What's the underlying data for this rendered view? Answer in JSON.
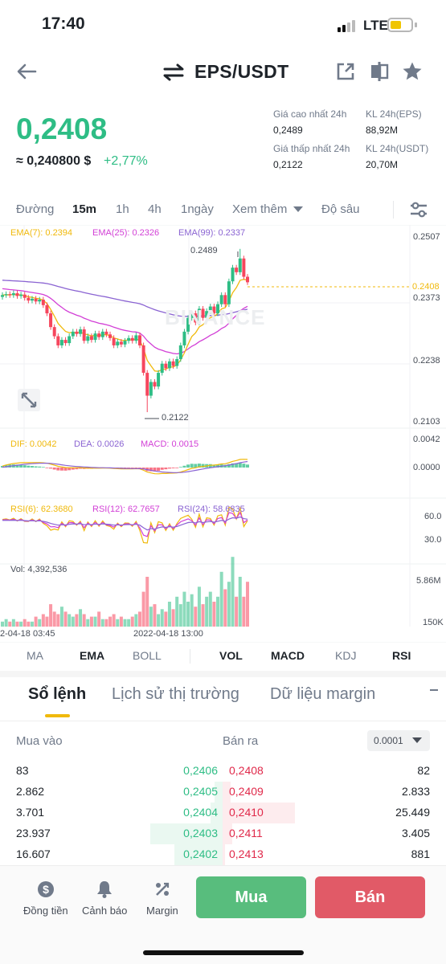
{
  "status": {
    "time": "17:40",
    "network": "LTE"
  },
  "header": {
    "pair": "EPS/USDT"
  },
  "price": {
    "last": "0,2408",
    "fiat": "≈ 0,240800 $",
    "change": "+2,77%"
  },
  "stats": {
    "high_label": "Giá cao nhất 24h",
    "high_value": "0,2489",
    "low_label": "Giá thấp nhất 24h",
    "low_value": "0,2122",
    "vol_base_label": "KL 24h(EPS)",
    "vol_base_value": "88,92M",
    "vol_quote_label": "KL 24h(USDT)",
    "vol_quote_value": "20,70M"
  },
  "timeframes": [
    "Đường",
    "15m",
    "1h",
    "4h",
    "1ngày",
    "Xem thêm",
    "Độ sâu"
  ],
  "active_timeframe": "15m",
  "chart": {
    "ema_legend": {
      "ema7": "EMA(7): 0.2394",
      "ema25": "EMA(25): 0.2326",
      "ema99": "EMA(99): 0.2337"
    },
    "price_axis": [
      "0.2507",
      "0.2373",
      "0.2238",
      "0.2103"
    ],
    "last_price_tag": "0.2408",
    "high_marker": "0.2489",
    "low_marker": "0.2122",
    "watermark": "BINANCE",
    "macd_legend": {
      "dif": "DIF: 0.0042",
      "dea": "DEA: 0.0026",
      "macd": "MACD: 0.0015"
    },
    "macd_axis": [
      "0.0042",
      "0.0000"
    ],
    "rsi_legend": {
      "rsi6": "RSI(6): 62.3680",
      "rsi12": "RSI(12): 62.7657",
      "rsi24": "RSI(24): 58.6835"
    },
    "rsi_axis": [
      "60.0",
      "30.0"
    ],
    "vol_legend": "Vol: 4,392,536",
    "vol_axis": [
      "5.86M",
      "150K"
    ],
    "time_axis": [
      "2-04-18 03:45",
      "2022-04-18 13:00"
    ],
    "colors": {
      "up": "#2ebd85",
      "down": "#f6465d",
      "ema7": "#f0b90b",
      "ema25": "#d23fd6",
      "ema99": "#8a63d2"
    }
  },
  "indicator_tabs": [
    "MA",
    "EMA",
    "BOLL",
    "VOL",
    "MACD",
    "KDJ",
    "RSI"
  ],
  "indicator_active": [
    "EMA",
    "VOL",
    "MACD",
    "RSI"
  ],
  "orderbook": {
    "tabs": [
      "Sổ lệnh",
      "Lịch sử thị trường",
      "Dữ liệu margin"
    ],
    "buy_label": "Mua vào",
    "sell_label": "Bán ra",
    "precision": "0.0001",
    "rows": [
      {
        "bid_qty": "83",
        "bid": "0,2406",
        "ask": "0,2408",
        "ask_qty": "82",
        "bid_depth": 0.0,
        "ask_depth": 0.0
      },
      {
        "bid_qty": "2.862",
        "bid": "0,2405",
        "ask": "0,2409",
        "ask_qty": "2.833",
        "bid_depth": 0.1,
        "ask_depth": 0.1
      },
      {
        "bid_qty": "3.701",
        "bid": "0,2404",
        "ask": "0,2410",
        "ask_qty": "25.449",
        "bid_depth": 0.15,
        "ask_depth": 0.9
      },
      {
        "bid_qty": "23.937",
        "bid": "0,2403",
        "ask": "0,2411",
        "ask_qty": "3.405",
        "bid_depth": 0.9,
        "ask_depth": 0.12
      },
      {
        "bid_qty": "16.607",
        "bid": "0,2402",
        "ask": "0,2413",
        "ask_qty": "881",
        "bid_depth": 0.6,
        "ask_depth": 0.03
      }
    ]
  },
  "bottom": {
    "currency": "Đồng tiền",
    "alert": "Cảnh báo",
    "margin": "Margin",
    "buy": "Mua",
    "sell": "Bán"
  }
}
